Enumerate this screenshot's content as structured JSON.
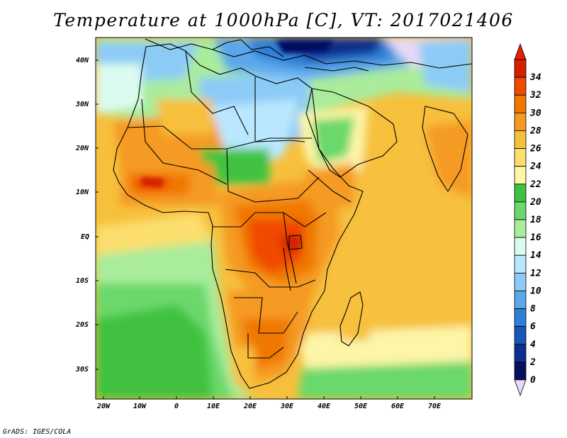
{
  "title": "Temperature at 1000hPa [C], VT: 2017021406",
  "footer": "GrADS: IGES/COLA",
  "map": {
    "projection": "lat-lon",
    "lon_range": [
      -22,
      80
    ],
    "lat_range": [
      -37,
      45
    ],
    "lon_ticks": [
      "20W",
      "10W",
      "0",
      "10E",
      "20E",
      "30E",
      "40E",
      "50E",
      "60E",
      "70E"
    ],
    "lat_ticks": [
      "40N",
      "30N",
      "20N",
      "10N",
      "EQ",
      "10S",
      "20S",
      "30S"
    ],
    "regions_description": [
      {
        "name": "central-africa-hot",
        "temp_range": "30-34"
      },
      {
        "name": "sahara-north-cool",
        "temp_range": "8-18"
      },
      {
        "name": "mediterranean-cold",
        "temp_range": "0-8"
      },
      {
        "name": "indian-ocean-warm",
        "temp_range": "24-28"
      },
      {
        "name": "south-atlantic-mild",
        "temp_range": "18-22"
      }
    ]
  },
  "colorbar": {
    "levels": [
      "34",
      "32",
      "30",
      "28",
      "26",
      "24",
      "22",
      "20",
      "18",
      "16",
      "14",
      "12",
      "10",
      "8",
      "6",
      "4",
      "2",
      "0"
    ],
    "colors": [
      "#d22000",
      "#f04a00",
      "#f07800",
      "#f59a20",
      "#f7c03c",
      "#fbde6e",
      "#fdf5a8",
      "#3fc23f",
      "#6bd86b",
      "#a9ec9b",
      "#dcfbf0",
      "#b9e7ff",
      "#8ccbf6",
      "#5ba7ea",
      "#2e7fd6",
      "#1a56b8",
      "#0d2f8e",
      "#061060"
    ],
    "top_color": "#e81e00",
    "bottom_color": "#e6d9f7"
  }
}
